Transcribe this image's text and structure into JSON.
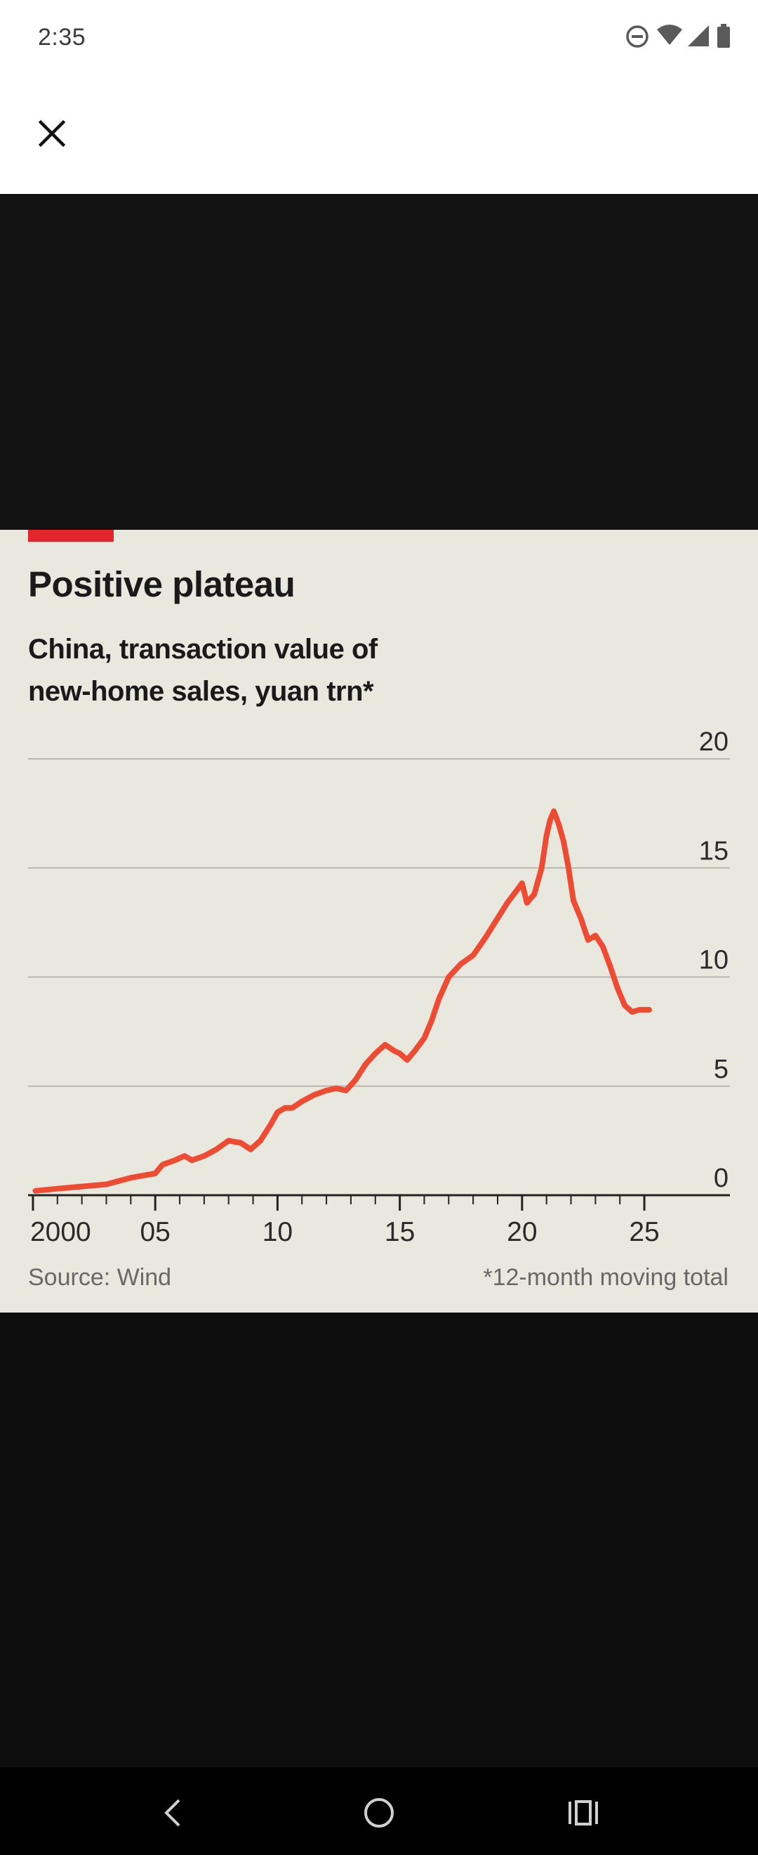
{
  "status_bar": {
    "time": "2:35",
    "icons": [
      "do-not-disturb-icon",
      "wifi-icon",
      "signal-icon",
      "battery-icon"
    ]
  },
  "toolbar": {
    "close_icon": "close-icon"
  },
  "chart_card": {
    "accent_color": "#e3262e",
    "line_color": "#ee4b33",
    "background_color": "#e9e8df",
    "source": "Source: Wind",
    "footnote": "*12-month moving total"
  },
  "chart_data": {
    "type": "line",
    "title": "Positive plateau",
    "subtitle_lines": [
      "China, transaction value of",
      "new-home sales, yuan trn*"
    ],
    "xlabel": "",
    "ylabel": "",
    "xlim": [
      1999.8,
      2028.5
    ],
    "ylim": [
      0,
      20
    ],
    "y_ticks": [
      0,
      5,
      10,
      15,
      20
    ],
    "y_tick_labels": [
      "0",
      "5",
      "10",
      "15",
      "20"
    ],
    "x_tick_labels": [
      {
        "year": 2000,
        "label": "2000"
      },
      {
        "year": 2005,
        "label": "05"
      },
      {
        "year": 2010,
        "label": "10"
      },
      {
        "year": 2015,
        "label": "15"
      },
      {
        "year": 2020,
        "label": "20"
      },
      {
        "year": 2025,
        "label": "25"
      }
    ],
    "grid": true,
    "series": [
      {
        "points": [
          [
            2000.1,
            0.2
          ],
          [
            2001,
            0.3
          ],
          [
            2002,
            0.4
          ],
          [
            2003,
            0.5
          ],
          [
            2004,
            0.8
          ],
          [
            2004.5,
            0.9
          ],
          [
            2005,
            1.0
          ],
          [
            2005.3,
            1.4
          ],
          [
            2005.8,
            1.6
          ],
          [
            2006.2,
            1.8
          ],
          [
            2006.5,
            1.6
          ],
          [
            2007,
            1.8
          ],
          [
            2007.5,
            2.1
          ],
          [
            2008,
            2.5
          ],
          [
            2008.5,
            2.4
          ],
          [
            2008.9,
            2.1
          ],
          [
            2009.3,
            2.5
          ],
          [
            2009.7,
            3.2
          ],
          [
            2010,
            3.8
          ],
          [
            2010.3,
            4.0
          ],
          [
            2010.6,
            4.0
          ],
          [
            2011,
            4.3
          ],
          [
            2011.5,
            4.6
          ],
          [
            2012,
            4.8
          ],
          [
            2012.4,
            4.9
          ],
          [
            2012.8,
            4.8
          ],
          [
            2013.2,
            5.3
          ],
          [
            2013.6,
            6.0
          ],
          [
            2014,
            6.5
          ],
          [
            2014.4,
            6.9
          ],
          [
            2014.8,
            6.6
          ],
          [
            2015,
            6.5
          ],
          [
            2015.3,
            6.2
          ],
          [
            2015.6,
            6.6
          ],
          [
            2016,
            7.2
          ],
          [
            2016.3,
            8.0
          ],
          [
            2016.6,
            9.0
          ],
          [
            2017,
            10.0
          ],
          [
            2017.5,
            10.6
          ],
          [
            2018,
            11.0
          ],
          [
            2018.5,
            11.8
          ],
          [
            2019,
            12.7
          ],
          [
            2019.4,
            13.4
          ],
          [
            2019.8,
            14.0
          ],
          [
            2020,
            14.3
          ],
          [
            2020.2,
            13.4
          ],
          [
            2020.5,
            13.8
          ],
          [
            2020.8,
            15.0
          ],
          [
            2021,
            16.5
          ],
          [
            2021.15,
            17.2
          ],
          [
            2021.3,
            17.6
          ],
          [
            2021.5,
            17.0
          ],
          [
            2021.7,
            16.2
          ],
          [
            2021.9,
            15.0
          ],
          [
            2022.1,
            13.5
          ],
          [
            2022.4,
            12.7
          ],
          [
            2022.7,
            11.7
          ],
          [
            2023,
            11.9
          ],
          [
            2023.3,
            11.4
          ],
          [
            2023.6,
            10.5
          ],
          [
            2023.9,
            9.5
          ],
          [
            2024.2,
            8.7
          ],
          [
            2024.5,
            8.4
          ],
          [
            2024.8,
            8.5
          ],
          [
            2025.2,
            8.5
          ]
        ]
      }
    ]
  },
  "nav_bar": {
    "icons": [
      "back-icon",
      "home-icon",
      "recents-icon"
    ]
  }
}
